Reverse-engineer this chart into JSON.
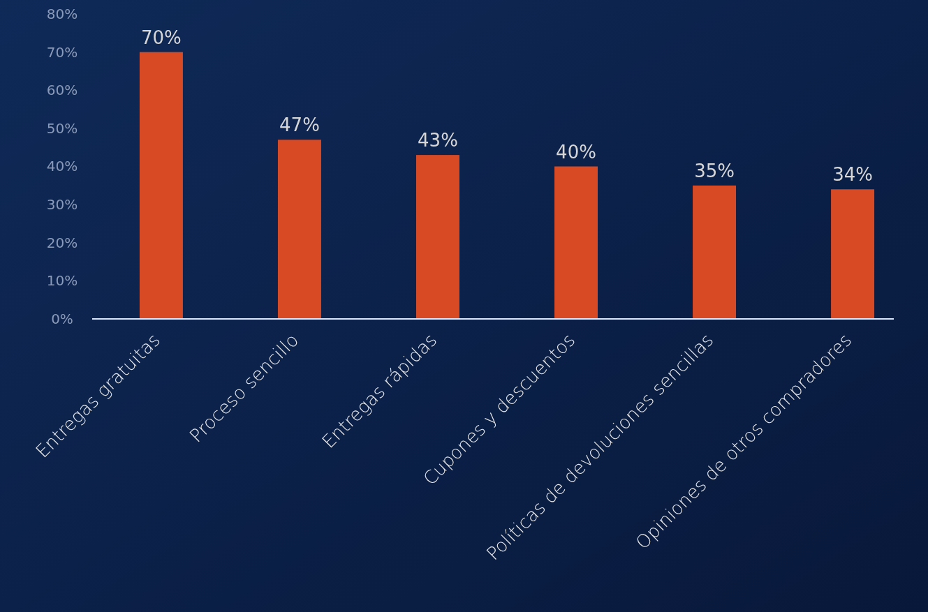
{
  "chart_data": {
    "type": "bar",
    "categories": [
      "Entregas gratuitas",
      "Proceso sencillo",
      "Entregas rápidas",
      "Cupones y descuentos",
      "Políticas de devoluciones sencillas",
      "Opiniones de otros compradores"
    ],
    "values": [
      70,
      47,
      43,
      40,
      35,
      34
    ],
    "color": "#d84a24",
    "ylim": [
      0,
      80
    ],
    "yticks": [
      {
        "value": 0,
        "label": "0%"
      },
      {
        "value": 10,
        "label": "10%"
      },
      {
        "value": 20,
        "label": "20%"
      },
      {
        "value": 30,
        "label": "30%"
      },
      {
        "value": 40,
        "label": "40%"
      },
      {
        "value": 50,
        "label": "50%"
      },
      {
        "value": 60,
        "label": "60%"
      },
      {
        "value": 70,
        "label": "70%"
      },
      {
        "value": 80,
        "label": "80%"
      }
    ],
    "value_labels": [
      "70%",
      "47%",
      "43%",
      "40%",
      "35%",
      "34%"
    ],
    "grid": false
  }
}
